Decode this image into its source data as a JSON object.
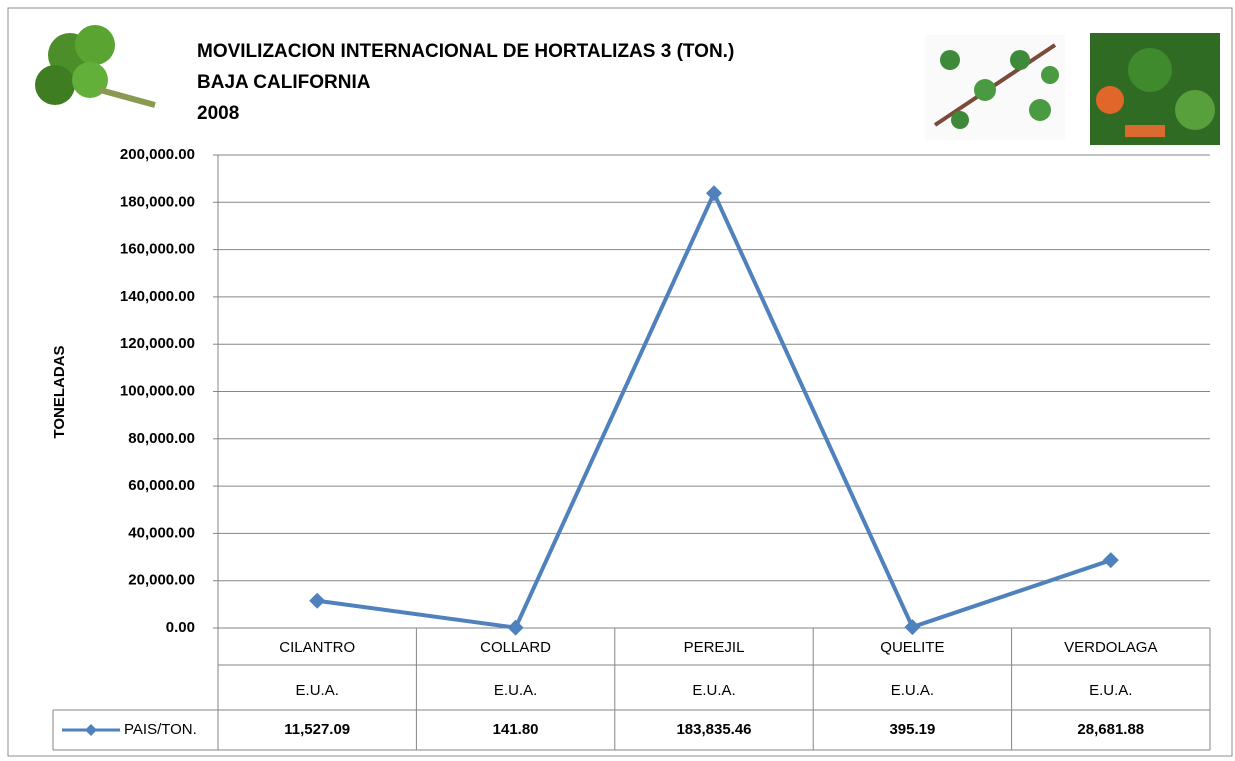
{
  "chart_data": {
    "type": "line",
    "title": [
      "MOVILIZACION INTERNACIONAL DE HORTALIZAS 3 (TON.)",
      "BAJA CALIFORNIA",
      "2008"
    ],
    "y_label": "TONELADAS",
    "categories": [
      "CILANTRO",
      "COLLARD",
      "PEREJIL",
      "QUELITE",
      "VERDOLAGA"
    ],
    "subcategories": [
      "E.U.A.",
      "E.U.A.",
      "E.U.A.",
      "E.U.A.",
      "E.U.A."
    ],
    "series": [
      {
        "name": "PAIS/TON.",
        "color": "#4f81bd",
        "values": [
          11527.09,
          141.8,
          183835.46,
          395.19,
          28681.88
        ],
        "value_labels": [
          "11,527.09",
          "141.80",
          "183,835.46",
          "395.19",
          "28,681.88"
        ]
      }
    ],
    "ylim": [
      0,
      200000
    ],
    "yticks": [
      {
        "value": 0,
        "label": "0.00"
      },
      {
        "value": 20000,
        "label": "20,000.00"
      },
      {
        "value": 40000,
        "label": "40,000.00"
      },
      {
        "value": 60000,
        "label": "60,000.00"
      },
      {
        "value": 80000,
        "label": "80,000.00"
      },
      {
        "value": 100000,
        "label": "100,000.00"
      },
      {
        "value": 120000,
        "label": "120,000.00"
      },
      {
        "value": 140000,
        "label": "140,000.00"
      },
      {
        "value": 160000,
        "label": "160,000.00"
      },
      {
        "value": 180000,
        "label": "180,000.00"
      },
      {
        "value": 200000,
        "label": "200,000.00"
      }
    ],
    "grid": true
  }
}
